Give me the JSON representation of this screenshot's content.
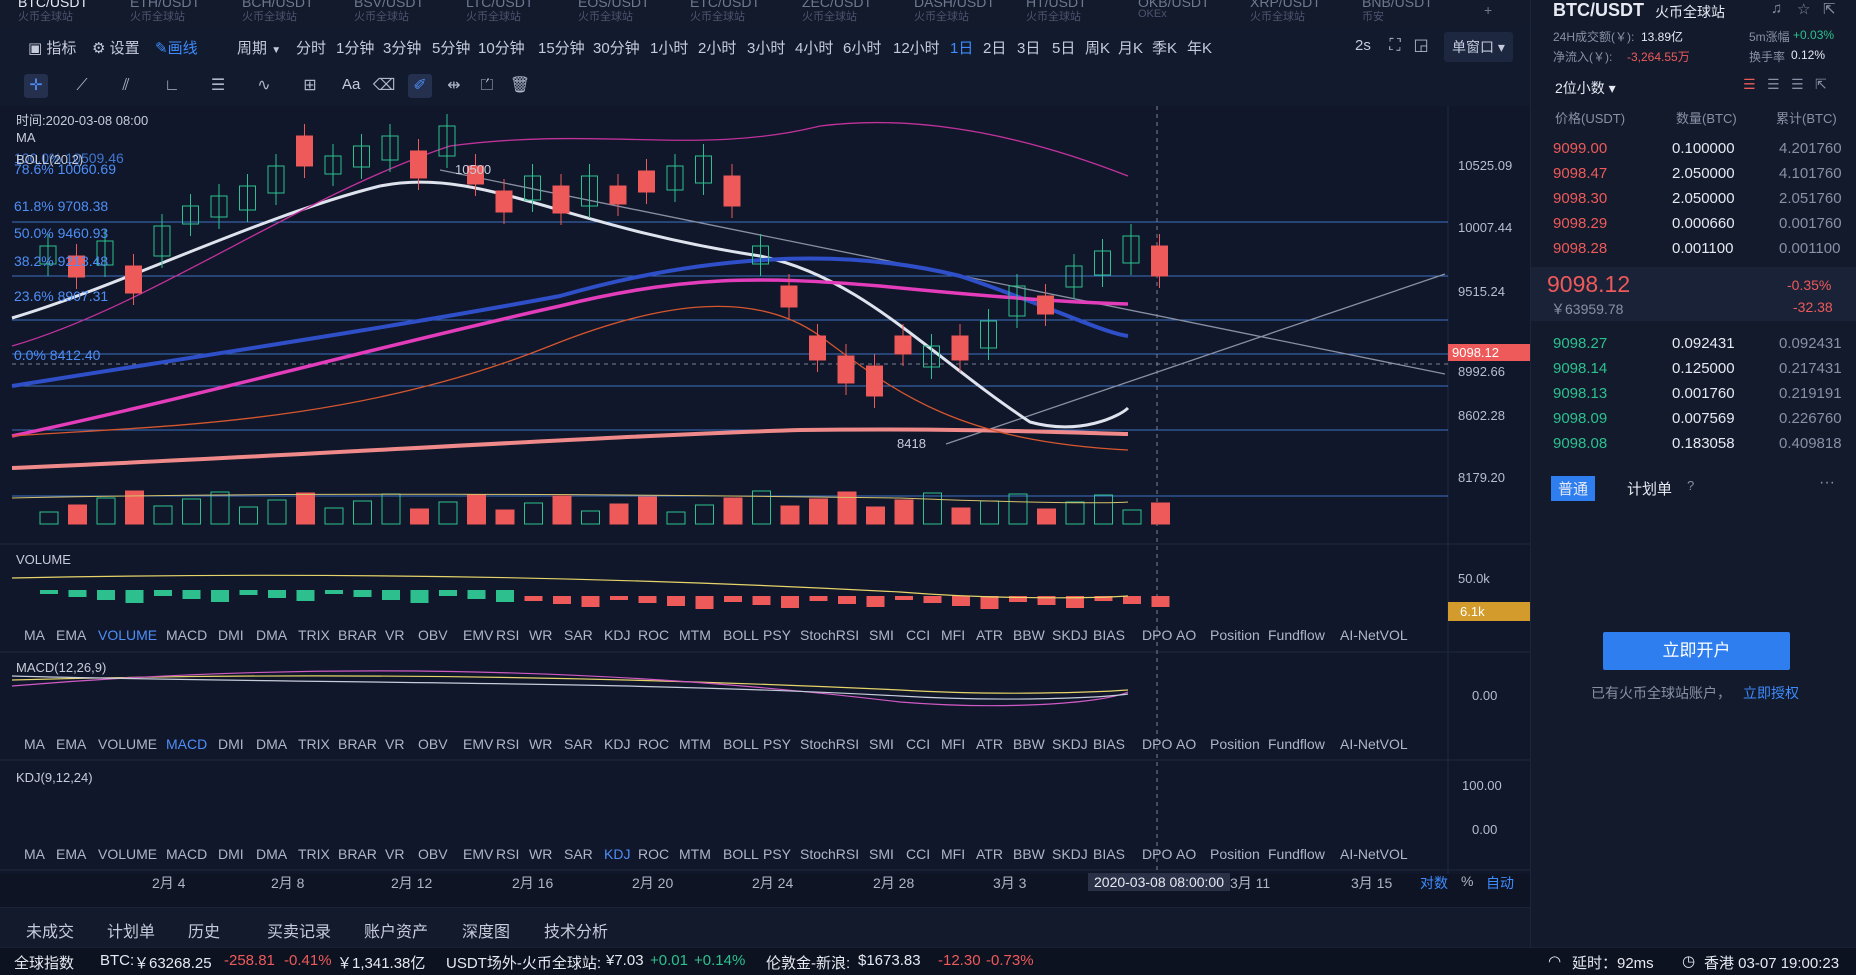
{
  "pairs": [
    {
      "name": "BTC/USDT",
      "sub": "火币全球站",
      "active": true
    },
    {
      "name": "ETH/USDT",
      "sub": "火币全球站"
    },
    {
      "name": "BCH/USDT",
      "sub": "火币全球站"
    },
    {
      "name": "BSV/USDT",
      "sub": "火币全球站"
    },
    {
      "name": "LTC/USDT",
      "sub": "火币全球站"
    },
    {
      "name": "EOS/USDT",
      "sub": "火币全球站"
    },
    {
      "name": "ETC/USDT",
      "sub": "火币全球站"
    },
    {
      "name": "ZEC/USDT",
      "sub": "火币全球站"
    },
    {
      "name": "DASH/USDT",
      "sub": "火币全球站"
    },
    {
      "name": "HT/USDT",
      "sub": "火币全球站"
    },
    {
      "name": "OKB/USDT",
      "sub": "OKEx"
    },
    {
      "name": "XRP/USDT",
      "sub": "火币全球站"
    },
    {
      "name": "BNB/USDT",
      "sub": "币安"
    }
  ],
  "toolbar1": {
    "indicator": "指标",
    "settings": "设置",
    "draw": "画线",
    "period": "周期",
    "intervals": [
      "分时",
      "1分钟",
      "3分钟",
      "5分钟",
      "10分钟",
      "15分钟",
      "30分钟",
      "1小时",
      "2小时",
      "3小时",
      "4小时",
      "6小时",
      "12小时",
      "1日",
      "2日",
      "3日",
      "5日",
      "周K",
      "月K",
      "季K",
      "年K"
    ],
    "selected_interval": "1日",
    "refresh": "2s",
    "window": "单窗口"
  },
  "toolbar2": {
    "text": "Aa"
  },
  "chart": {
    "time_label": "时间:2020-03-08 08:00",
    "ma_label": "MA",
    "ma_overlay": "100.0% 10509.46",
    "boll_label": "BOLL(20,2)",
    "peak": "10500",
    "trough": "8418",
    "fib": [
      {
        "label": "78.6% 10060.69",
        "top": 171
      },
      {
        "label": "61.8% 9708.38",
        "top": 208
      },
      {
        "label": "50.0% 9460.93",
        "top": 235
      },
      {
        "label": "38.2% 9213.48",
        "top": 263
      },
      {
        "label": "23.6% 8907.31",
        "top": 298
      },
      {
        "label": "0.0% 8412.40",
        "top": 357
      }
    ],
    "yaxis": [
      "10525.09",
      "10007.44",
      "9515.24",
      "8602.28",
      "8179.20"
    ],
    "crosshair_price": "8992.66",
    "last_price_tag": "9098.12",
    "volume_label": "VOLUME",
    "volume_axis": "50.0k",
    "volume_tag": "6.1k",
    "macd_label": "MACD(12,26,9)",
    "macd_axis": "0.00",
    "kdj_label": "KDJ(9,12,24)",
    "kdj_axis": [
      "100.00",
      "0.00"
    ],
    "xaxis": [
      "2月 4",
      "2月 8",
      "2月 12",
      "2月 16",
      "2月 20",
      "2月 24",
      "2月 28",
      "3月 3",
      "3月 11",
      "3月 15"
    ],
    "crosshair_time": "2020-03-08 08:00:00",
    "axis_opts": {
      "log": "对数",
      "pct": "%",
      "auto": "自动"
    }
  },
  "indicators": [
    "MA",
    "EMA",
    "VOLUME",
    "MACD",
    "DMI",
    "DMA",
    "TRIX",
    "BRAR",
    "VR",
    "OBV",
    "EMV",
    "RSI",
    "WR",
    "SAR",
    "KDJ",
    "ROC",
    "MTM",
    "BOLL",
    "PSY",
    "StochRSI",
    "SMI",
    "CCI",
    "MFI",
    "ATR",
    "BBW",
    "SKDJ",
    "BIAS",
    "DPO",
    "AO",
    "Position",
    "Fundflow",
    "AI-NetVOL"
  ],
  "bottom_tabs": [
    "未成交",
    "计划单",
    "历史",
    "买卖记录",
    "账户资产",
    "深度图",
    "技术分析"
  ],
  "status": {
    "global_index": "全球指数",
    "btc_label": "BTC:",
    "btc_price": "￥63268.25",
    "btc_chg": "-258.81",
    "btc_pct": "-0.41%",
    "btc_vol": "￥1,341.38亿",
    "usdt_label": "USDT场外-火币全球站:",
    "usdt_price": "¥7.03",
    "usdt_chg": "+0.01",
    "usdt_pct": "+0.14%",
    "gold_label": "伦敦金-新浪:",
    "gold_price": "$1673.83",
    "gold_chg": "-12.30",
    "gold_pct": "-0.73%",
    "latency": "延时：92ms",
    "clock": "香港 03-07 19:00:23"
  },
  "right": {
    "pair": "BTC/USDT",
    "exchange": "火币全球站",
    "vol24_label": "24H成交额(￥):",
    "vol24": "13.89亿",
    "change5m_label": "5m涨幅",
    "change5m": "+0.03%",
    "inflow_label": "净流入(￥):",
    "inflow": "-3,264.55万",
    "turnover_label": "换手率",
    "turnover": "0.12%",
    "decimals": "2位小数",
    "headers": [
      "价格(USDT)",
      "数量(BTC)",
      "累计(BTC)"
    ],
    "asks": [
      {
        "price": "9099.00",
        "qty": "0.100000",
        "cum": "4.201760"
      },
      {
        "price": "9098.47",
        "qty": "2.050000",
        "cum": "4.101760"
      },
      {
        "price": "9098.30",
        "qty": "2.050000",
        "cum": "2.051760"
      },
      {
        "price": "9098.29",
        "qty": "0.000660",
        "cum": "0.001760"
      },
      {
        "price": "9098.28",
        "qty": "0.001100",
        "cum": "0.001100"
      }
    ],
    "last_price": "9098.12",
    "last_cny": "￥63959.78",
    "last_pct": "-0.35%",
    "last_chg": "-32.38",
    "bids": [
      {
        "price": "9098.27",
        "qty": "0.092431",
        "cum": "0.092431"
      },
      {
        "price": "9098.14",
        "qty": "0.125000",
        "cum": "0.217431"
      },
      {
        "price": "9098.13",
        "qty": "0.001760",
        "cum": "0.219191"
      },
      {
        "price": "9098.09",
        "qty": "0.007569",
        "cum": "0.226760"
      },
      {
        "price": "9098.08",
        "qty": "0.183058",
        "cum": "0.409818"
      }
    ],
    "tab_normal": "普通",
    "tab_plan": "计划单",
    "open_account": "立即开户",
    "have_account": "已有火币全球站账户，",
    "authorize": "立即授权"
  }
}
